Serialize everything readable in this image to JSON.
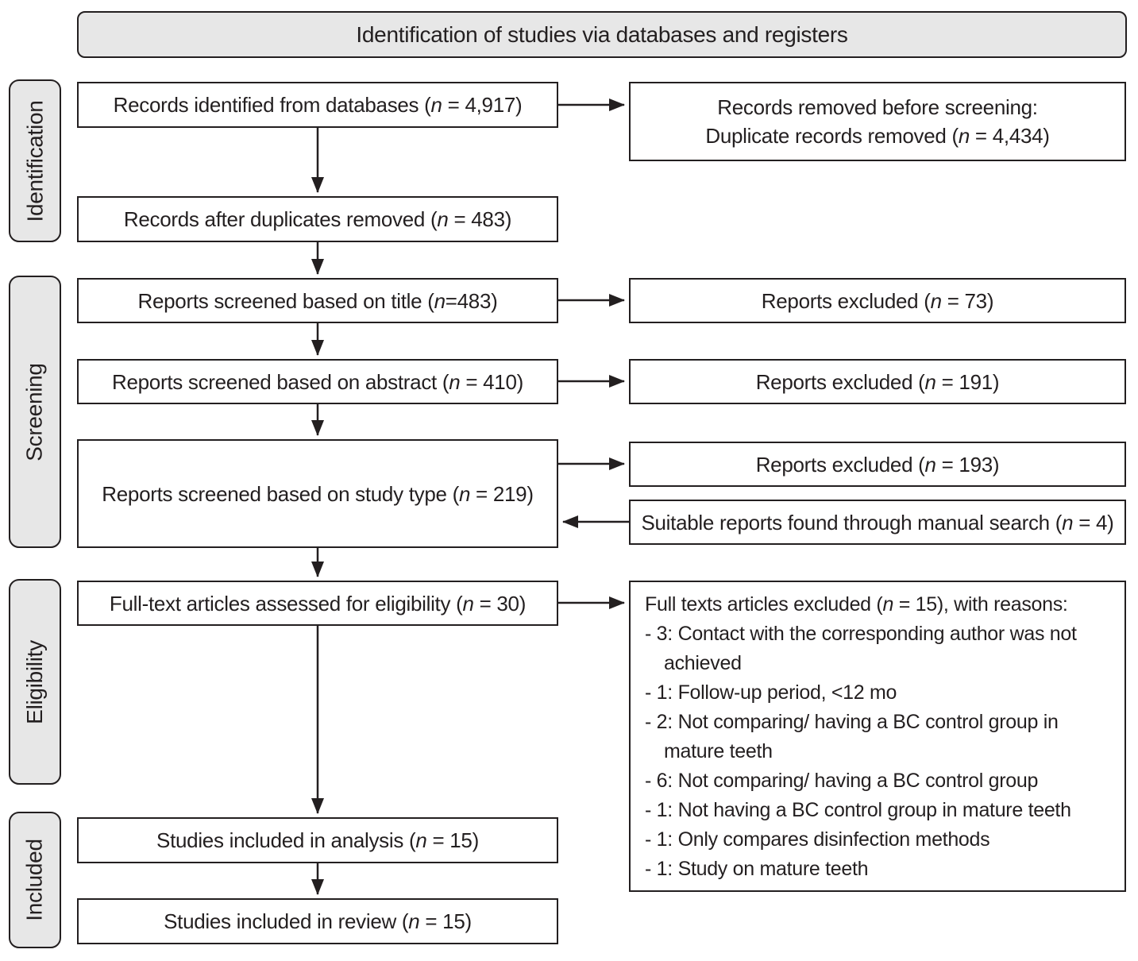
{
  "header": {
    "title": "Identification of studies via databases and registers"
  },
  "stages": [
    {
      "id": "identification",
      "label": "Identification"
    },
    {
      "id": "screening",
      "label": "Screening"
    },
    {
      "id": "eligibility",
      "label": "Eligibility"
    },
    {
      "id": "included",
      "label": "Included"
    }
  ],
  "boxes": {
    "records_identified": "Records identified from databases (n = 4,917)",
    "records_removed_line1": "Records removed before screening:",
    "records_removed_line2": "Duplicate records removed (n = 4,434)",
    "records_after_duplicates": "Records after duplicates removed (n = 483)",
    "screened_title": "Reports screened based on title (n=483)",
    "excluded_title": "Reports excluded (n = 73)",
    "screened_abstract": "Reports screened based on abstract (n = 410)",
    "excluded_abstract": "Reports excluded (n = 191)",
    "screened_study_type": "Reports screened based on study type (n = 219)",
    "excluded_study_type": "Reports excluded (n = 193)",
    "manual_search": "Suitable reports found through manual search (n = 4)",
    "fulltext_assessed": "Full-text articles assessed for eligibility (n = 30)",
    "included_analysis": "Studies included in analysis (n = 15)",
    "included_review": "Studies included in review (n = 15)"
  },
  "reasons": {
    "title": "Full texts articles excluded (n = 15), with reasons:",
    "items": [
      "- 3: Contact with the corresponding author was not achieved",
      "- 1: Follow-up period, <12 mo",
      "- 2: Not comparing/ having a BC control group in mature teeth",
      "- 6: Not comparing/ having a BC control group",
      "- 1: Not having a BC control group in mature teeth",
      "- 1: Only compares disinfection methods",
      "- 1: Study on mature teeth"
    ]
  },
  "colors": {
    "stage_fill": "#e7e7e7",
    "box_fill": "#ffffff",
    "border": "#231f20",
    "text": "#231f20",
    "background": "#ffffff"
  }
}
